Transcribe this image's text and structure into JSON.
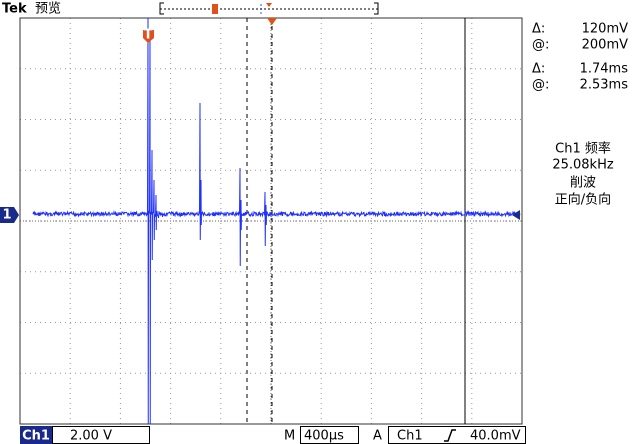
{
  "header": {
    "brand": "Tek",
    "mode": "预览"
  },
  "markers": {
    "channel": "1",
    "trigger": "T"
  },
  "cursors": {
    "amplitude": {
      "delta_label": "Δ:",
      "delta": "120mV",
      "at_label": "@:",
      "at": "200mV"
    },
    "time": {
      "delta_label": "Δ:",
      "delta": "1.74ms",
      "at_label": "@:",
      "at": "2.53ms"
    }
  },
  "measurement": {
    "title": "Ch1 频率",
    "value": "25.08kHz",
    "status": "削波",
    "note": "正向/负向"
  },
  "status_bar": {
    "channel": "Ch1",
    "scale": "2.00 V",
    "time_label": "M",
    "time_scale": "400µs",
    "trigger_label": "A",
    "trigger_channel": "Ch1",
    "trigger_level": "40.0mV"
  }
}
